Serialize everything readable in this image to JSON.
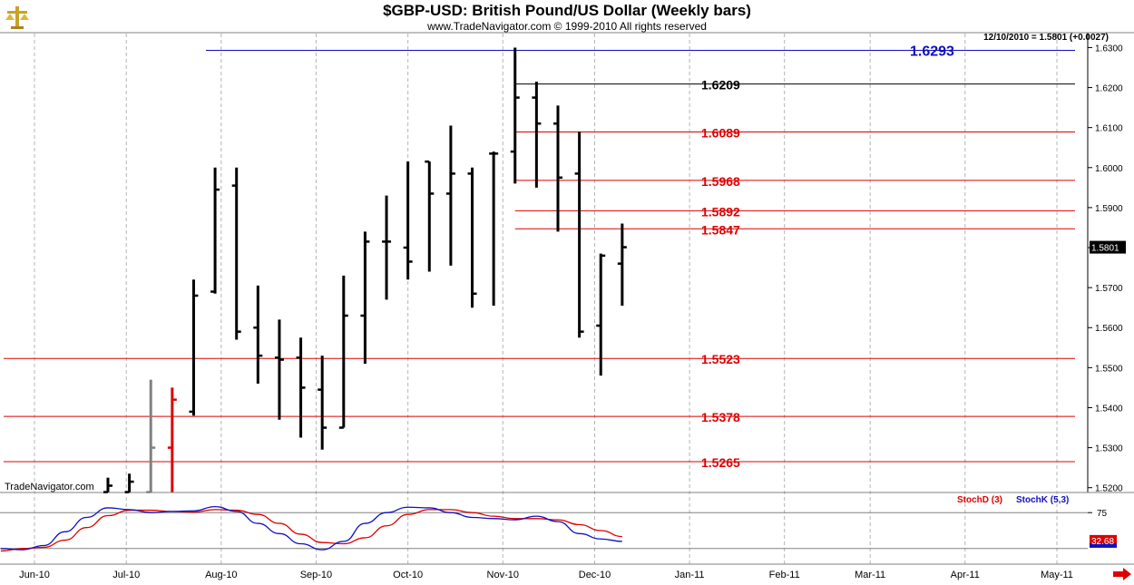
{
  "title": "$GBP-USD:  British Pound/US Dollar  (Weekly bars)",
  "subtitle": "www.TradeNavigator.com © 1999-2010 All rights reserved",
  "readout": "12/10/2010 = 1.5801 (+0.0027)",
  "watermark": "TradeNavigator.com",
  "icons": {
    "logo": "scales-icon",
    "scroll": "right-arrow-icon"
  },
  "colors": {
    "bars": "#000000",
    "support_lines": "#dd0000",
    "high_line": "#1010c0",
    "stochD": "#dd0000",
    "stochK": "#1010c0",
    "grid": "#b4b4b4"
  },
  "chart_data": {
    "type": "ohlc",
    "title": "$GBP-USD:  British Pound/US Dollar  (Weekly bars)",
    "xlabel": "",
    "ylabel": "",
    "ylim": [
      1.5188,
      1.6335
    ],
    "y_ticks": [
      "1.5200",
      "1.5300",
      "1.5400",
      "1.5500",
      "1.5600",
      "1.5700",
      "1.5800",
      "1.5900",
      "1.6000",
      "1.6100",
      "1.6200",
      "1.6300"
    ],
    "x_labels": [
      "Jun-10",
      "Jul-10",
      "Aug-10",
      "Sep-10",
      "Oct-10",
      "Nov-10",
      "Dec-10",
      "Jan-11",
      "Feb-11",
      "Mar-11",
      "Apr-11",
      "May-11"
    ],
    "last_price_label": "1.5801",
    "bars": [
      {
        "date": "2010-06-25",
        "open": 1.5189,
        "high": 1.5225,
        "low": 1.5189,
        "close": 1.5205,
        "color": "#000000"
      },
      {
        "date": "2010-07-02",
        "open": 1.5189,
        "high": 1.5235,
        "low": 1.5189,
        "close": 1.5215,
        "color": "#000000"
      },
      {
        "date": "2010-07-09",
        "open": 1.5189,
        "high": 1.547,
        "low": 1.5189,
        "close": 1.53,
        "color": "#808080"
      },
      {
        "date": "2010-07-16",
        "open": 1.53,
        "high": 1.545,
        "low": 1.5189,
        "close": 1.542,
        "color": "#dd0000"
      },
      {
        "date": "2010-07-23",
        "open": 1.539,
        "high": 1.572,
        "low": 1.538,
        "close": 1.568,
        "color": "#000000"
      },
      {
        "date": "2010-07-30",
        "open": 1.569,
        "high": 1.6,
        "low": 1.5685,
        "close": 1.5945,
        "color": "#000000"
      },
      {
        "date": "2010-08-06",
        "open": 1.5955,
        "high": 1.6,
        "low": 1.557,
        "close": 1.559,
        "color": "#000000"
      },
      {
        "date": "2010-08-13",
        "open": 1.56,
        "high": 1.5705,
        "low": 1.546,
        "close": 1.553,
        "color": "#000000"
      },
      {
        "date": "2010-08-20",
        "open": 1.5525,
        "high": 1.562,
        "low": 1.537,
        "close": 1.552,
        "color": "#000000"
      },
      {
        "date": "2010-08-27",
        "open": 1.5525,
        "high": 1.5575,
        "low": 1.5325,
        "close": 1.545,
        "color": "#000000"
      },
      {
        "date": "2010-09-03",
        "open": 1.5445,
        "high": 1.553,
        "low": 1.5295,
        "close": 1.535,
        "color": "#000000"
      },
      {
        "date": "2010-09-10",
        "open": 1.535,
        "high": 1.573,
        "low": 1.535,
        "close": 1.563,
        "color": "#000000"
      },
      {
        "date": "2010-09-17",
        "open": 1.563,
        "high": 1.584,
        "low": 1.551,
        "close": 1.5815,
        "color": "#000000"
      },
      {
        "date": "2010-09-24",
        "open": 1.5815,
        "high": 1.593,
        "low": 1.567,
        "close": 1.5815,
        "color": "#000000"
      },
      {
        "date": "2010-10-01",
        "open": 1.58,
        "high": 1.6015,
        "low": 1.572,
        "close": 1.5765,
        "color": "#000000"
      },
      {
        "date": "2010-10-08",
        "open": 1.6015,
        "high": 1.6015,
        "low": 1.574,
        "close": 1.5935,
        "color": "#000000"
      },
      {
        "date": "2010-10-15",
        "open": 1.5935,
        "high": 1.6105,
        "low": 1.5755,
        "close": 1.5985,
        "color": "#000000"
      },
      {
        "date": "2010-10-22",
        "open": 1.5985,
        "high": 1.6,
        "low": 1.565,
        "close": 1.5685,
        "color": "#000000"
      },
      {
        "date": "2010-10-29",
        "open": 1.6035,
        "high": 1.604,
        "low": 1.5655,
        "close": 1.6035,
        "color": "#000000"
      },
      {
        "date": "2010-11-05",
        "open": 1.604,
        "high": 1.63,
        "low": 1.596,
        "close": 1.6175,
        "color": "#000000"
      },
      {
        "date": "2010-11-12",
        "open": 1.6175,
        "high": 1.6215,
        "low": 1.595,
        "close": 1.611,
        "color": "#000000"
      },
      {
        "date": "2010-11-19",
        "open": 1.611,
        "high": 1.6155,
        "low": 1.584,
        "close": 1.5975,
        "color": "#000000"
      },
      {
        "date": "2010-11-26",
        "open": 1.5985,
        "high": 1.609,
        "low": 1.5575,
        "close": 1.559,
        "color": "#000000"
      },
      {
        "date": "2010-12-03",
        "open": 1.5605,
        "high": 1.5785,
        "low": 1.548,
        "close": 1.578,
        "color": "#000000"
      },
      {
        "date": "2010-12-10",
        "open": 1.576,
        "high": 1.586,
        "low": 1.5655,
        "close": 1.5801,
        "color": "#000000"
      }
    ],
    "horizontal_lines": [
      {
        "value": 1.6293,
        "label": "1.6293",
        "color": "#1010c0",
        "start": "2010-07-27"
      },
      {
        "value": 1.6209,
        "label": "1.6209",
        "color": "#000000",
        "start": "2010-11-05"
      },
      {
        "value": 1.6089,
        "label": "1.6089",
        "color": "#dd0000",
        "start": "2010-11-05"
      },
      {
        "value": 1.5968,
        "label": "1.5968",
        "color": "#dd0000",
        "start": "2010-11-05"
      },
      {
        "value": 1.5892,
        "label": "1.5892",
        "color": "#dd0000",
        "start": "2010-11-05"
      },
      {
        "value": 1.5847,
        "label": "1.5847",
        "color": "#dd0000",
        "start": "2010-11-05"
      },
      {
        "value": 1.5523,
        "label": "1.5523",
        "color": "#dd0000",
        "start": "2010-05-20"
      },
      {
        "value": 1.5378,
        "label": "1.5378",
        "color": "#dd0000",
        "start": "2010-05-20"
      },
      {
        "value": 1.5265,
        "label": "1.5265",
        "color": "#dd0000",
        "start": "2010-05-20"
      }
    ],
    "stochastic": {
      "ylim": [
        0,
        100
      ],
      "levels": [
        20,
        80
      ],
      "tick_label": "75",
      "d_legend": "StochD (3)",
      "k_legend": "StochK (5,3)",
      "last_value_label": "32.68",
      "dates": [
        "2010-05-21",
        "2010-05-28",
        "2010-06-04",
        "2010-06-11",
        "2010-06-18",
        "2010-06-25",
        "2010-07-02",
        "2010-07-09",
        "2010-07-16",
        "2010-07-23",
        "2010-07-30",
        "2010-08-06",
        "2010-08-13",
        "2010-08-20",
        "2010-08-27",
        "2010-09-03",
        "2010-09-10",
        "2010-09-17",
        "2010-09-24",
        "2010-10-01",
        "2010-10-08",
        "2010-10-15",
        "2010-10-22",
        "2010-10-29",
        "2010-11-05",
        "2010-11-12",
        "2010-11-19",
        "2010-11-26",
        "2010-12-03",
        "2010-12-10"
      ],
      "k": [
        20,
        18,
        25,
        48,
        72,
        88,
        85,
        80,
        82,
        83,
        90,
        82,
        62,
        45,
        28,
        18,
        32,
        62,
        80,
        89,
        88,
        80,
        72,
        70,
        68,
        74,
        65,
        45,
        36,
        32
      ],
      "d": [
        16,
        20,
        22,
        34,
        55,
        75,
        84,
        84,
        82,
        81,
        85,
        84,
        77,
        62,
        44,
        30,
        28,
        38,
        58,
        77,
        85,
        85,
        80,
        74,
        70,
        70,
        68,
        60,
        50,
        40
      ]
    }
  }
}
